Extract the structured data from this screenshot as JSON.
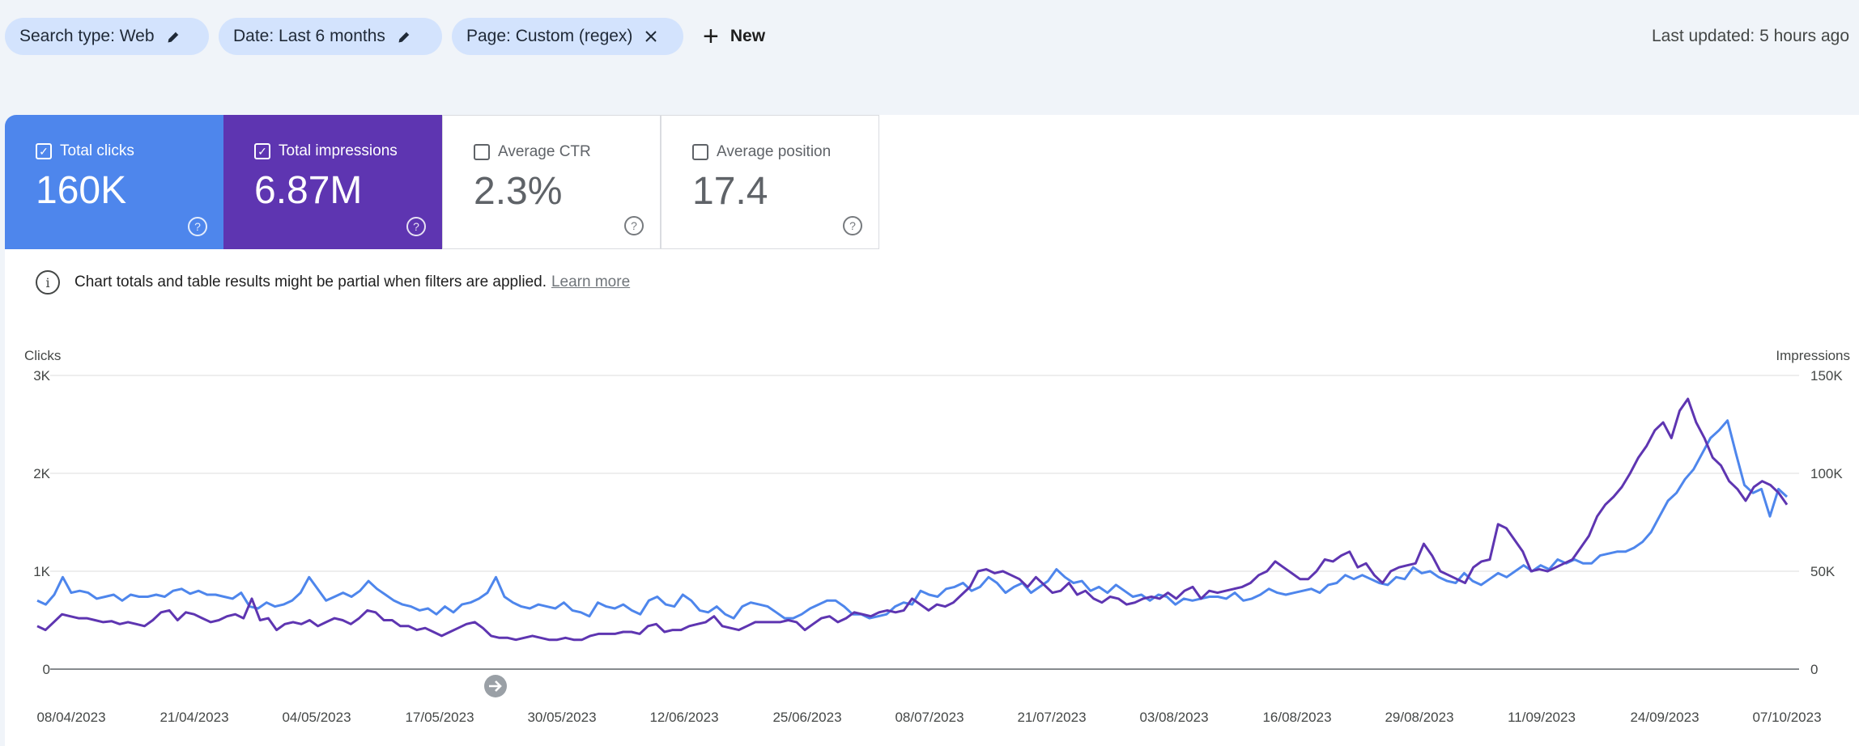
{
  "filters": {
    "search_type": "Search type: Web",
    "date": "Date: Last 6 months",
    "page": "Page: Custom (regex)",
    "new_label": "New",
    "last_updated": "Last updated: 5 hours ago"
  },
  "metrics": {
    "clicks": {
      "label": "Total clicks",
      "value": "160K",
      "checked": true,
      "color": "#4e86ec"
    },
    "impressions": {
      "label": "Total impressions",
      "value": "6.87M",
      "checked": true,
      "color": "#5e35b1"
    },
    "ctr": {
      "label": "Average CTR",
      "value": "2.3%",
      "checked": false
    },
    "position": {
      "label": "Average position",
      "value": "17.4",
      "checked": false
    }
  },
  "notice": {
    "text": "Chart totals and table results might be partial when filters are applied.",
    "link": "Learn more"
  },
  "chart_data": {
    "type": "line",
    "ylabel": "Clicks",
    "y2label": "Impressions",
    "ylim": [
      0,
      3000
    ],
    "y2lim": [
      0,
      150000
    ],
    "yticks": [
      "0",
      "1K",
      "2K",
      "3K"
    ],
    "y2ticks": [
      "0",
      "50K",
      "100K",
      "150K"
    ],
    "grid": true,
    "xticks": [
      "08/04/2023",
      "21/04/2023",
      "04/05/2023",
      "17/05/2023",
      "30/05/2023",
      "12/06/2023",
      "25/06/2023",
      "08/07/2023",
      "21/07/2023",
      "03/08/2023",
      "16/08/2023",
      "29/08/2023",
      "11/09/2023",
      "24/09/2023",
      "07/10/2023"
    ],
    "series": [
      {
        "axis": "left",
        "color": "#4e86ec",
        "values": [
          700,
          660,
          760,
          940,
          780,
          800,
          780,
          720,
          740,
          760,
          700,
          760,
          740,
          740,
          760,
          740,
          800,
          820,
          770,
          800,
          760,
          760,
          740,
          720,
          780,
          640,
          620,
          680,
          640,
          660,
          700,
          780,
          940,
          820,
          700,
          740,
          780,
          740,
          800,
          900,
          820,
          760,
          700,
          660,
          640,
          600,
          620,
          560,
          640,
          580,
          660,
          680,
          720,
          780,
          940,
          740,
          680,
          640,
          620,
          660,
          640,
          620,
          680,
          600,
          580,
          540,
          680,
          640,
          620,
          660,
          600,
          560,
          700,
          740,
          660,
          640,
          760,
          700,
          600,
          580,
          640,
          560,
          520,
          640,
          680,
          660,
          640,
          580,
          520,
          520,
          560,
          620,
          660,
          700,
          700,
          640,
          560,
          560,
          520,
          540,
          560,
          640,
          680,
          660,
          800,
          760,
          740,
          820,
          840,
          880,
          800,
          840,
          940,
          880,
          780,
          840,
          880,
          780,
          840,
          900,
          1020,
          940,
          880,
          900,
          800,
          840,
          780,
          860,
          800,
          740,
          760,
          700,
          760,
          740,
          660,
          720,
          700,
          720,
          740,
          740,
          720,
          780,
          700,
          720,
          760,
          820,
          780,
          760,
          780,
          800,
          820,
          780,
          860,
          880,
          960,
          920,
          960,
          920,
          880,
          860,
          940,
          920,
          1040,
          980,
          1000,
          940,
          900,
          880,
          980,
          900,
          860,
          920,
          980,
          940,
          1000,
          1060,
          1000,
          1060,
          1020,
          1120,
          1080,
          1120,
          1080,
          1080,
          1160,
          1180,
          1200,
          1200,
          1240,
          1300,
          1400,
          1560,
          1720,
          1800,
          1940,
          2040,
          2200,
          2360,
          2440,
          2540,
          2200,
          1880,
          1800,
          1840,
          1560,
          1840,
          1760
        ]
      },
      {
        "axis": "right",
        "color": "#5e35b1",
        "values": [
          22000,
          20000,
          24000,
          28000,
          27000,
          26000,
          26000,
          25000,
          24000,
          24500,
          23000,
          24000,
          23000,
          22000,
          25000,
          29000,
          30000,
          25000,
          29000,
          28000,
          26000,
          24000,
          25000,
          27000,
          28000,
          26000,
          36000,
          25000,
          26000,
          20000,
          23000,
          24000,
          23000,
          25000,
          22000,
          24000,
          26000,
          25000,
          23000,
          26000,
          30000,
          29000,
          25000,
          25000,
          22000,
          22000,
          20000,
          21000,
          19000,
          17000,
          19000,
          21000,
          23000,
          24000,
          21000,
          17000,
          16000,
          16000,
          15000,
          16000,
          17000,
          16000,
          15000,
          15000,
          16000,
          15000,
          15000,
          17000,
          18000,
          18000,
          18000,
          19000,
          19000,
          18000,
          22000,
          23000,
          19000,
          20000,
          20000,
          22000,
          23000,
          24000,
          27000,
          22000,
          21000,
          20000,
          22000,
          24000,
          24000,
          24000,
          24000,
          25000,
          24000,
          20000,
          23000,
          26000,
          27000,
          24000,
          26000,
          29000,
          28000,
          27000,
          29000,
          30000,
          29000,
          30000,
          36000,
          33000,
          30000,
          33000,
          32000,
          34000,
          38000,
          42000,
          50000,
          51000,
          49000,
          50000,
          48000,
          46000,
          42000,
          47000,
          43000,
          39000,
          40000,
          44000,
          38000,
          40000,
          36000,
          34000,
          37000,
          36000,
          33000,
          34000,
          36000,
          37000,
          36000,
          39000,
          36000,
          40000,
          42000,
          36000,
          40000,
          39000,
          40000,
          41000,
          42000,
          44000,
          48000,
          50000,
          55000,
          52000,
          49000,
          46000,
          46000,
          50000,
          56000,
          55000,
          58000,
          60000,
          52000,
          54000,
          48000,
          44000,
          50000,
          52000,
          53000,
          54000,
          64000,
          58000,
          50000,
          48000,
          46000,
          44000,
          52000,
          55000,
          56000,
          74000,
          72000,
          66000,
          60000,
          50000,
          51000,
          50000,
          52000,
          54000,
          56000,
          62000,
          68000,
          78000,
          84000,
          88000,
          93000,
          100000,
          108000,
          114000,
          122000,
          126000,
          118000,
          132000,
          138000,
          126000,
          118000,
          108000,
          104000,
          96000,
          92000,
          86000,
          93000,
          96000,
          94000,
          90000,
          84000
        ]
      }
    ]
  }
}
